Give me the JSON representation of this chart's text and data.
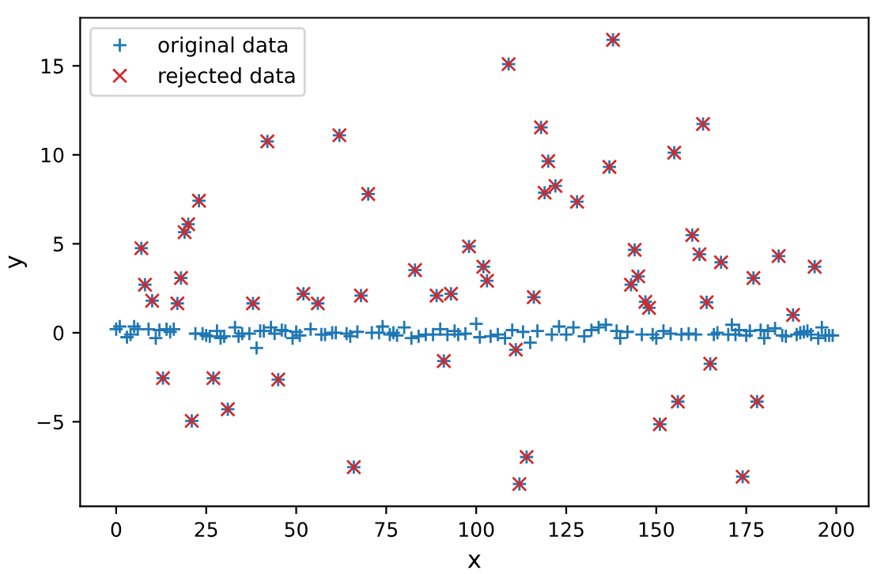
{
  "chart_data": {
    "type": "scatter",
    "xlabel": "x",
    "ylabel": "y",
    "xlim": [
      -10,
      209
    ],
    "ylim": [
      -9.75,
      17.7
    ],
    "xticks": [
      0,
      25,
      50,
      75,
      100,
      125,
      150,
      175,
      200
    ],
    "yticks": [
      {
        "value": -5,
        "label": "−5"
      },
      0,
      5,
      10,
      15
    ],
    "grid": false,
    "legend": "top left",
    "series": [
      {
        "name": "original data",
        "color": "#1f77b4",
        "marker": "plus",
        "x": [
          0,
          1,
          3,
          4,
          5,
          6,
          9,
          11,
          12,
          14,
          15,
          16,
          22,
          24,
          25,
          26,
          28,
          29,
          30,
          33,
          34,
          35,
          37,
          39,
          40,
          41,
          43,
          44,
          46,
          47,
          49,
          50,
          51,
          54,
          57,
          58,
          60,
          61,
          64,
          65,
          67,
          71,
          73,
          74,
          76,
          77,
          78,
          80,
          82,
          84,
          86,
          88,
          90,
          92,
          94,
          95,
          97,
          100,
          101,
          104,
          106,
          108,
          110,
          113,
          115,
          117,
          121,
          123,
          125,
          127,
          130,
          132,
          134,
          136,
          139,
          140,
          142,
          146,
          149,
          150,
          152,
          154,
          157,
          159,
          161,
          166,
          167,
          170,
          171,
          172,
          173,
          175,
          176,
          179,
          180,
          181,
          183,
          185,
          186,
          189,
          190,
          191,
          192,
          193,
          195,
          196,
          197,
          198,
          199,
          7,
          8,
          10,
          13,
          17,
          18,
          19,
          20,
          21,
          23,
          27,
          31,
          38,
          42,
          45,
          52,
          56,
          62,
          66,
          68,
          70,
          83,
          89,
          91,
          93,
          98,
          102,
          103,
          109,
          111,
          112,
          114,
          116,
          118,
          119,
          120,
          122,
          128,
          137,
          138,
          143,
          144,
          145,
          147,
          148,
          151,
          155,
          156,
          160,
          162,
          163,
          164,
          165,
          168,
          174,
          177,
          178,
          184,
          188,
          194
        ],
        "values": [
          0.2,
          0.35,
          -0.25,
          -0.1,
          0.35,
          0.2,
          0.2,
          -0.3,
          0.15,
          0.2,
          0.05,
          0.2,
          -0.05,
          -0.05,
          -0.15,
          -0.2,
          0.1,
          -0.3,
          -0.2,
          0.3,
          -0.2,
          -0.05,
          -0.05,
          -0.85,
          0.1,
          0.1,
          0.3,
          -0.05,
          0.15,
          0.1,
          -0.3,
          0.05,
          -0.15,
          0.2,
          -0.1,
          -0.1,
          0,
          0,
          -0.05,
          -0.2,
          0.05,
          0,
          0,
          0.35,
          -0.1,
          0,
          -0.15,
          0.3,
          -0.3,
          -0.2,
          -0.1,
          -0.1,
          0.2,
          -0.1,
          0.1,
          -0.1,
          -0.05,
          0.5,
          -0.25,
          -0.2,
          -0.1,
          -0.3,
          0.15,
          0.05,
          -0.55,
          0.1,
          -0.1,
          0.35,
          -0.1,
          0.3,
          -0.2,
          0.15,
          0.3,
          0.45,
          0.1,
          -0.3,
          0.05,
          -0.1,
          -0.1,
          -0.3,
          0.1,
          -0.05,
          -0.1,
          -0.05,
          -0.1,
          -0.1,
          0,
          -0.1,
          0.45,
          -0.1,
          0.15,
          -0.15,
          0.1,
          0.15,
          -0.3,
          0.1,
          0.25,
          -0.15,
          -0.2,
          -0.1,
          0,
          0.05,
          0.1,
          -0.1,
          -0.3,
          0.3,
          -0.15,
          -0.15,
          -0.15,
          4.75,
          2.7,
          1.8,
          -2.55,
          1.65,
          3.08,
          5.65,
          6.1,
          -4.95,
          7.42,
          -2.55,
          -4.3,
          1.65,
          10.75,
          -2.63,
          2.19,
          1.65,
          11.1,
          -7.55,
          2.09,
          7.8,
          3.52,
          2.09,
          -1.59,
          2.19,
          4.85,
          3.71,
          2.92,
          15.1,
          -0.95,
          -8.5,
          -6.98,
          2.0,
          11.54,
          7.87,
          9.64,
          8.25,
          7.36,
          9.32,
          16.46,
          2.7,
          4.66,
          3.17,
          1.74,
          1.4,
          -5.14,
          10.12,
          -3.87,
          5.49,
          4.41,
          11.73,
          1.71,
          -1.74,
          3.96,
          -8.09,
          3.08,
          -3.87,
          4.31,
          1.0,
          3.71
        ]
      },
      {
        "name": "rejected data",
        "color": "#d62728",
        "marker": "cross",
        "x": [
          7,
          8,
          10,
          13,
          17,
          18,
          19,
          20,
          21,
          23,
          27,
          31,
          38,
          42,
          45,
          52,
          56,
          62,
          66,
          68,
          70,
          83,
          89,
          91,
          93,
          98,
          102,
          103,
          109,
          111,
          112,
          114,
          116,
          118,
          119,
          120,
          122,
          128,
          137,
          138,
          143,
          144,
          145,
          147,
          148,
          151,
          155,
          156,
          160,
          162,
          163,
          164,
          165,
          168,
          174,
          177,
          178,
          184,
          188,
          194
        ],
        "values": [
          4.75,
          2.7,
          1.8,
          -2.55,
          1.65,
          3.08,
          5.65,
          6.1,
          -4.95,
          7.42,
          -2.55,
          -4.3,
          1.65,
          10.75,
          -2.63,
          2.19,
          1.65,
          11.1,
          -7.55,
          2.09,
          7.8,
          3.52,
          2.09,
          -1.59,
          2.19,
          4.85,
          3.71,
          2.92,
          15.1,
          -0.95,
          -8.5,
          -6.98,
          2.0,
          11.54,
          7.87,
          9.64,
          8.25,
          7.36,
          9.32,
          16.46,
          2.7,
          4.66,
          3.17,
          1.74,
          1.4,
          -5.14,
          10.12,
          -3.87,
          5.49,
          4.41,
          11.73,
          1.71,
          -1.74,
          3.96,
          -8.09,
          3.08,
          -3.87,
          4.31,
          1.0,
          3.71
        ]
      }
    ]
  }
}
